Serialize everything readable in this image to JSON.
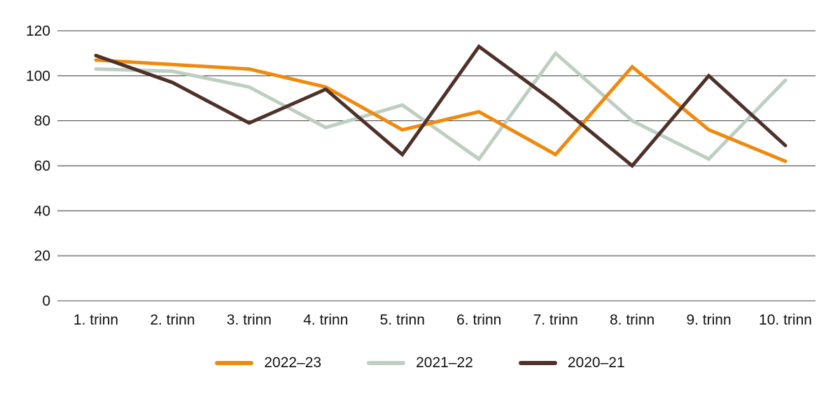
{
  "chart_data": {
    "type": "line",
    "title": "",
    "xlabel": "",
    "ylabel": "",
    "categories": [
      "1. trinn",
      "2. trinn",
      "3. trinn",
      "4. trinn",
      "5. trinn",
      "6. trinn",
      "7. trinn",
      "8. trinn",
      "9. trinn",
      "10. trinn"
    ],
    "series": [
      {
        "name": "2022–23",
        "color": "#EF8A0E",
        "values": [
          107,
          105,
          103,
          95,
          76,
          84,
          65,
          104,
          76,
          62
        ]
      },
      {
        "name": "2021–22",
        "color": "#BECFC2",
        "values": [
          103,
          102,
          95,
          77,
          87,
          63,
          110,
          80,
          63,
          98
        ]
      },
      {
        "name": "2020–21",
        "color": "#4E322A",
        "values": [
          109,
          97,
          79,
          94,
          65,
          113,
          88,
          60,
          100,
          69
        ]
      }
    ],
    "ylim": [
      0,
      120
    ],
    "yticks": [
      0,
      20,
      40,
      60,
      80,
      100,
      120
    ],
    "grid": true,
    "legend_position": "bottom",
    "colors": {
      "grid_dark": "#3c3c3c",
      "grid_light": "#949494",
      "axis_zero": "#a3a3a3",
      "text": "#111111",
      "background": "#ffffff"
    }
  }
}
